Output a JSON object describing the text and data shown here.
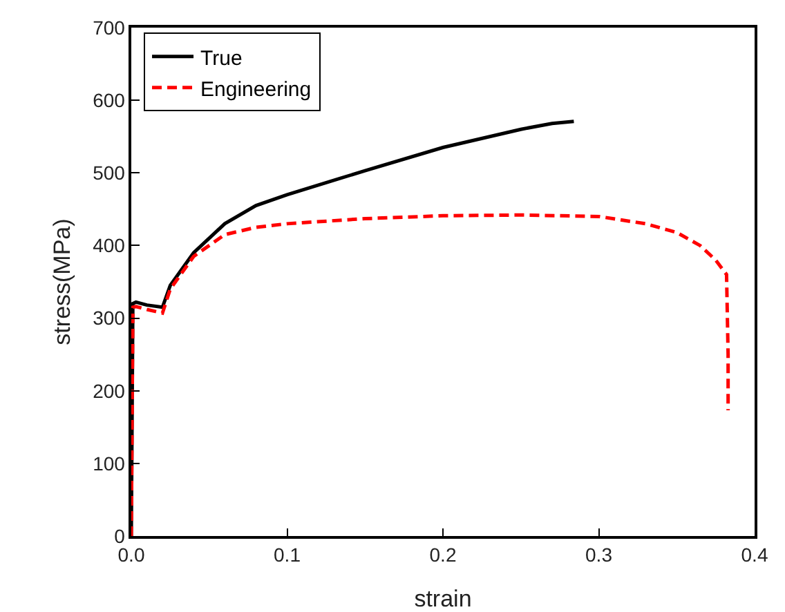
{
  "chart_data": {
    "type": "line",
    "xlabel": "strain",
    "ylabel": "stress(MPa)",
    "xlim": [
      0,
      0.4
    ],
    "ylim": [
      0,
      700
    ],
    "xticks": [
      {
        "value": 0,
        "label": "0.0"
      },
      0.1,
      0.2,
      0.3,
      0.4
    ],
    "yticks": [
      0,
      100,
      200,
      300,
      400,
      500,
      600,
      700
    ],
    "grid": false,
    "legend": "top left",
    "marker": "none",
    "series": [
      {
        "name": "True",
        "color": "#000000",
        "line_style": "solid",
        "x": [
          0,
          0.001,
          0.003,
          0.01,
          0.02,
          0.025,
          0.04,
          0.06,
          0.08,
          0.1,
          0.15,
          0.2,
          0.25,
          0.27,
          0.284
        ],
        "values": [
          0,
          320,
          322,
          318,
          315,
          345,
          390,
          430,
          455,
          470,
          503,
          535,
          560,
          568,
          571
        ]
      },
      {
        "name": "Engineering",
        "color": "#ff0000",
        "line_style": "dashed",
        "x": [
          0,
          0.001,
          0.003,
          0.01,
          0.02,
          0.025,
          0.04,
          0.06,
          0.08,
          0.1,
          0.15,
          0.2,
          0.25,
          0.3,
          0.33,
          0.35,
          0.365,
          0.375,
          0.382,
          0.383,
          0.383
        ],
        "values": [
          0,
          315,
          316,
          312,
          307,
          340,
          385,
          415,
          425,
          430,
          437,
          441,
          442,
          440,
          430,
          418,
          400,
          380,
          360,
          250,
          173
        ]
      }
    ]
  }
}
